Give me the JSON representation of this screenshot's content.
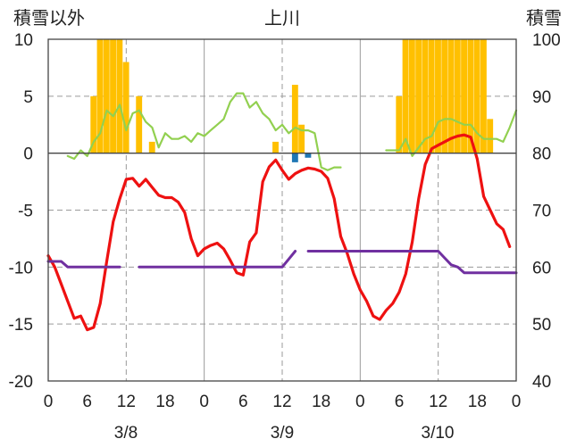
{
  "chart_data": {
    "type": "line",
    "title": "上川",
    "y_left_label": "積雪以外",
    "y_right_label": "積雪",
    "y_left_range": [
      -20,
      10
    ],
    "y_left_ticks": [
      10,
      5,
      0,
      -5,
      -10,
      -15,
      -20
    ],
    "y_right_range": [
      40,
      100
    ],
    "y_right_ticks": [
      100,
      90,
      80,
      70,
      60,
      50,
      40
    ],
    "x_range_hours": [
      0,
      72
    ],
    "x_tick_hours": [
      0,
      6,
      12,
      18,
      24,
      30,
      36,
      42,
      48,
      54,
      60,
      66,
      72
    ],
    "x_tick_labels": [
      "0",
      "6",
      "12",
      "18",
      "0",
      "6",
      "12",
      "18",
      "0",
      "6",
      "12",
      "18",
      "0"
    ],
    "day_boundaries": [
      24,
      48
    ],
    "midday_lines": [
      12,
      36,
      60
    ],
    "dates": [
      {
        "label": "3/8",
        "hour": 12
      },
      {
        "label": "3/9",
        "hour": 36
      },
      {
        "label": "3/10",
        "hour": 60
      }
    ],
    "grid": true,
    "colors": {
      "temperature": "#ee1111",
      "snow_depth": "#92d050",
      "wind": "#7030a0",
      "snowfall": "#ffc000",
      "rain": "#1f77b4"
    },
    "series": [
      {
        "name": "temperature",
        "axis": "left",
        "x": [
          0,
          1,
          2,
          3,
          4,
          5,
          6,
          7,
          8,
          9,
          10,
          11,
          12,
          13,
          14,
          15,
          16,
          17,
          18,
          19,
          20,
          21,
          22,
          23,
          24,
          25,
          26,
          27,
          28,
          29,
          30,
          31,
          32,
          33,
          34,
          35,
          36,
          37,
          38,
          39,
          40,
          41,
          42,
          43,
          44,
          45,
          46,
          47,
          48,
          49,
          50,
          51,
          52,
          53,
          54,
          55,
          56,
          57,
          58,
          59,
          60,
          61,
          62,
          63,
          64,
          65,
          66,
          67,
          68,
          69,
          70,
          71
        ],
        "values": [
          -9.0,
          -10.0,
          -11.5,
          -13.0,
          -14.5,
          -14.3,
          -15.5,
          -15.3,
          -13.2,
          -9.5,
          -6.0,
          -4.0,
          -2.3,
          -2.2,
          -2.9,
          -2.3,
          -3.0,
          -3.7,
          -3.9,
          -3.9,
          -4.3,
          -5.2,
          -7.5,
          -9.0,
          -8.4,
          -8.1,
          -7.9,
          -8.4,
          -9.4,
          -10.5,
          -10.7,
          -7.8,
          -7.0,
          -2.5,
          -1.2,
          -0.6,
          -1.5,
          -2.3,
          -1.8,
          -1.5,
          -1.3,
          -1.4,
          -1.6,
          -2.2,
          -4.0,
          -7.3,
          -8.8,
          -10.6,
          -12.0,
          -13.0,
          -14.3,
          -14.6,
          -13.8,
          -13.2,
          -12.2,
          -10.6,
          -7.8,
          -4.0,
          -1.0,
          0.4,
          0.7,
          1.0,
          1.3,
          1.5,
          1.6,
          1.4,
          -0.5,
          -3.8,
          -5.0,
          -6.2,
          -6.7,
          -8.2
        ]
      },
      {
        "name": "snow_depth",
        "axis": "right",
        "segments": [
          {
            "x": [
              3,
              4,
              5,
              6,
              7,
              8,
              9,
              10,
              11,
              12,
              13,
              14,
              15,
              16,
              17,
              18,
              19,
              20,
              21,
              22,
              23,
              24,
              25,
              26,
              27,
              28,
              29,
              30,
              31,
              32,
              33,
              34,
              35,
              36,
              37,
              38,
              39,
              40,
              41,
              42,
              43,
              44,
              45
            ],
            "values": [
              79.5,
              79,
              80.5,
              79.5,
              82,
              83.5,
              87.5,
              86.5,
              88.5,
              84,
              87,
              87.5,
              85.5,
              84.5,
              81,
              83.5,
              82.5,
              82.5,
              83,
              82,
              83.5,
              83,
              84,
              85,
              86,
              89,
              90.5,
              90.5,
              88,
              89,
              87,
              86,
              84,
              85,
              83.5,
              84.5,
              84,
              84,
              83.5,
              77.5,
              77,
              77.5,
              77.5
            ]
          },
          {
            "x": [
              52,
              53,
              54,
              55,
              56,
              57,
              58,
              59,
              60,
              61,
              62,
              63,
              64,
              65,
              66,
              67,
              68,
              69,
              70,
              71,
              72
            ],
            "values": [
              80.5,
              80.5,
              80.5,
              82.5,
              79.5,
              81,
              82.5,
              83,
              85.5,
              86,
              86,
              85.5,
              85,
              85,
              83.5,
              82.5,
              82.5,
              82.5,
              82,
              84.5,
              87.5
            ]
          }
        ]
      },
      {
        "name": "wind",
        "axis": "left",
        "segments": [
          {
            "x": [
              0,
              1,
              2,
              3,
              4,
              5,
              6,
              7,
              8,
              9,
              10,
              11
            ],
            "values": [
              -9.5,
              -9.5,
              -9.5,
              -10,
              -10,
              -10,
              -10,
              -10,
              -10,
              -10,
              -10,
              -10
            ]
          },
          {
            "x": [
              14,
              15,
              16,
              17,
              18,
              19,
              20,
              21,
              22,
              23,
              24,
              25,
              26,
              27,
              28,
              29,
              30,
              31,
              32,
              33,
              34,
              35,
              36,
              37,
              38
            ],
            "values": [
              -10,
              -10,
              -10,
              -10,
              -10,
              -10,
              -10,
              -10,
              -10,
              -10,
              -10,
              -10,
              -10,
              -10,
              -10,
              -10,
              -10,
              -10,
              -10,
              -10,
              -10,
              -10,
              -10,
              -9.3,
              -8.6
            ]
          },
          {
            "x": [
              40,
              41,
              42,
              43,
              44,
              45,
              46,
              47,
              48,
              49,
              50,
              51,
              52,
              53,
              54,
              55,
              56,
              57,
              58,
              59,
              60,
              61,
              62,
              63,
              64,
              65,
              66,
              67,
              68,
              69,
              70,
              71,
              72
            ],
            "values": [
              -8.6,
              -8.6,
              -8.6,
              -8.6,
              -8.6,
              -8.6,
              -8.6,
              -8.6,
              -8.6,
              -8.6,
              -8.6,
              -8.6,
              -8.6,
              -8.6,
              -8.6,
              -8.6,
              -8.6,
              -8.6,
              -8.6,
              -8.6,
              -8.6,
              -9.2,
              -9.8,
              -10,
              -10.5,
              -10.5,
              -10.5,
              -10.5,
              -10.5,
              -10.5,
              -10.5,
              -10.5,
              -10.5
            ]
          }
        ]
      },
      {
        "name": "snowfall",
        "axis": "left",
        "type": "bar",
        "x": [
          7,
          8,
          9,
          10,
          11,
          12,
          14,
          16,
          35,
          38,
          39,
          54,
          55,
          56,
          57,
          58,
          59,
          60,
          61,
          62,
          63,
          64,
          65,
          66,
          67,
          68
        ],
        "values": [
          5,
          10,
          10,
          10,
          10,
          8,
          5,
          1,
          1,
          6,
          2.5,
          5,
          10,
          10,
          10,
          10,
          10,
          10,
          10,
          10,
          10,
          10,
          10,
          10,
          10,
          3
        ]
      },
      {
        "name": "rain",
        "axis": "left",
        "type": "bar",
        "x": [
          38,
          40
        ],
        "values": [
          -0.8,
          -0.4
        ]
      }
    ]
  }
}
